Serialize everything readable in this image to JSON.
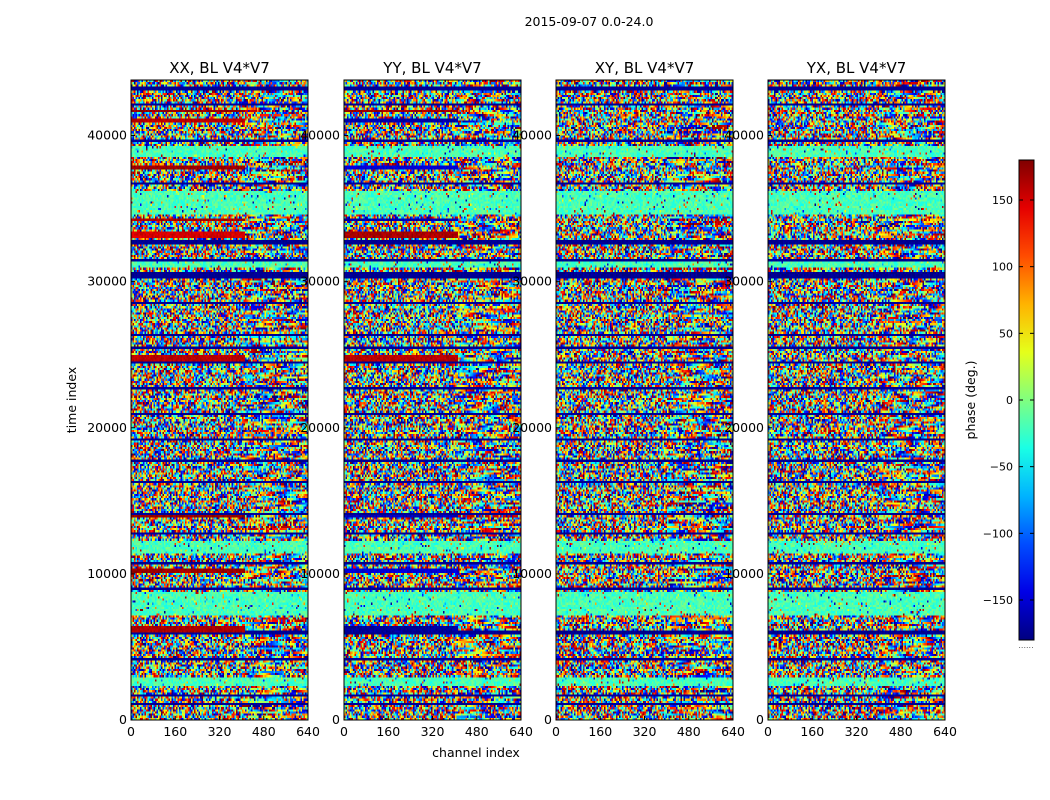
{
  "chart_data": {
    "type": "heatmap",
    "suptitle": "2015-09-07 0.0-24.0",
    "xlabel": "channel index",
    "ylabel": "time index",
    "xlim": [
      0,
      640
    ],
    "ylim": [
      0,
      43800
    ],
    "xticks": [
      "0",
      "160",
      "320",
      "480",
      "640"
    ],
    "yticks": [
      "0",
      "10000",
      "20000",
      "30000",
      "40000"
    ],
    "panels": [
      {
        "title": "XX, BL V4*V7",
        "bands": [
          {
            "t0": 6000,
            "t1": 6400,
            "value": 165,
            "channels": [
              0,
              410
            ]
          },
          {
            "t0": 10100,
            "t1": 10400,
            "value": 170,
            "channels": [
              0,
              410
            ]
          },
          {
            "t0": 13800,
            "t1": 14000,
            "value": 172,
            "channels": [
              0,
              410
            ]
          },
          {
            "t0": 24600,
            "t1": 24900,
            "value": 160,
            "channels": [
              0,
              410
            ]
          },
          {
            "t0": 33000,
            "t1": 33400,
            "value": 150,
            "channels": [
              0,
              410
            ]
          },
          {
            "t0": 34100,
            "t1": 34300,
            "value": 165,
            "channels": [
              0,
              410
            ]
          },
          {
            "t0": 37700,
            "t1": 38000,
            "value": 170,
            "channels": [
              0,
              410
            ]
          },
          {
            "t0": 40900,
            "t1": 41200,
            "value": 160,
            "channels": [
              0,
              410
            ]
          },
          {
            "t0": 41600,
            "t1": 41800,
            "value": 172,
            "channels": [
              0,
              410
            ]
          }
        ]
      },
      {
        "title": "YY, BL V4*V7",
        "bands": [
          {
            "t0": 6000,
            "t1": 6400,
            "value": -172,
            "channels": [
              0,
              410
            ]
          },
          {
            "t0": 10100,
            "t1": 10400,
            "value": -150,
            "channels": [
              0,
              410
            ]
          },
          {
            "t0": 13800,
            "t1": 14000,
            "value": -160,
            "channels": [
              0,
              410
            ]
          },
          {
            "t0": 24600,
            "t1": 24900,
            "value": 160,
            "channels": [
              0,
              410
            ]
          },
          {
            "t0": 33000,
            "t1": 33400,
            "value": 165,
            "channels": [
              0,
              410
            ]
          },
          {
            "t0": 34100,
            "t1": 34300,
            "value": -165,
            "channels": [
              0,
              410
            ]
          },
          {
            "t0": 37700,
            "t1": 38000,
            "value": -150,
            "channels": [
              0,
              410
            ]
          },
          {
            "t0": 40900,
            "t1": 41200,
            "value": -165,
            "channels": [
              0,
              410
            ]
          },
          {
            "t0": 41600,
            "t1": 41800,
            "value": 170,
            "channels": [
              0,
              410
            ]
          }
        ]
      },
      {
        "title": "XY, BL V4*V7",
        "bands": [
          {
            "t0": 6000,
            "t1": 6200,
            "value": -175,
            "channels": [
              0,
              640
            ]
          },
          {
            "t0": 30300,
            "t1": 30600,
            "value": -175,
            "channels": [
              0,
              640
            ]
          },
          {
            "t0": 28400,
            "t1": 28600,
            "value": -170,
            "channels": [
              0,
              640
            ]
          }
        ]
      },
      {
        "title": "YX, BL V4*V7",
        "bands": [
          {
            "t0": 6000,
            "t1": 6200,
            "value": -175,
            "channels": [
              0,
              640
            ]
          },
          {
            "t0": 30300,
            "t1": 30600,
            "value": -175,
            "channels": [
              0,
              640
            ]
          },
          {
            "t0": 28400,
            "t1": 28600,
            "value": -170,
            "channels": [
              0,
              640
            ]
          }
        ]
      }
    ],
    "calm_rows": [
      {
        "t0": 2400,
        "t1": 2900
      },
      {
        "t0": 7100,
        "t1": 8700
      },
      {
        "t0": 11400,
        "t1": 12300
      },
      {
        "t0": 34600,
        "t1": 36200
      },
      {
        "t0": 38600,
        "t1": 39300
      },
      {
        "t0": 31000,
        "t1": 31400
      }
    ],
    "dark_lines": [
      1100,
      1700,
      4200,
      6000,
      9000,
      10700,
      12800,
      14100,
      16300,
      17700,
      19200,
      21000,
      22700,
      24400,
      25500,
      26300,
      28500,
      30300,
      30500,
      31500,
      32700,
      36700,
      39600,
      42100,
      43200
    ],
    "colorbar": {
      "label": "phase (deg.)",
      "vmin": -180,
      "vmax": 180,
      "ticks": [
        "150",
        "100",
        "50",
        "0",
        "−50",
        "−100",
        "−150"
      ],
      "tick_values": [
        150,
        100,
        50,
        0,
        -50,
        -100,
        -150
      ],
      "colormap": "jet",
      "extra_tick": "......"
    }
  }
}
